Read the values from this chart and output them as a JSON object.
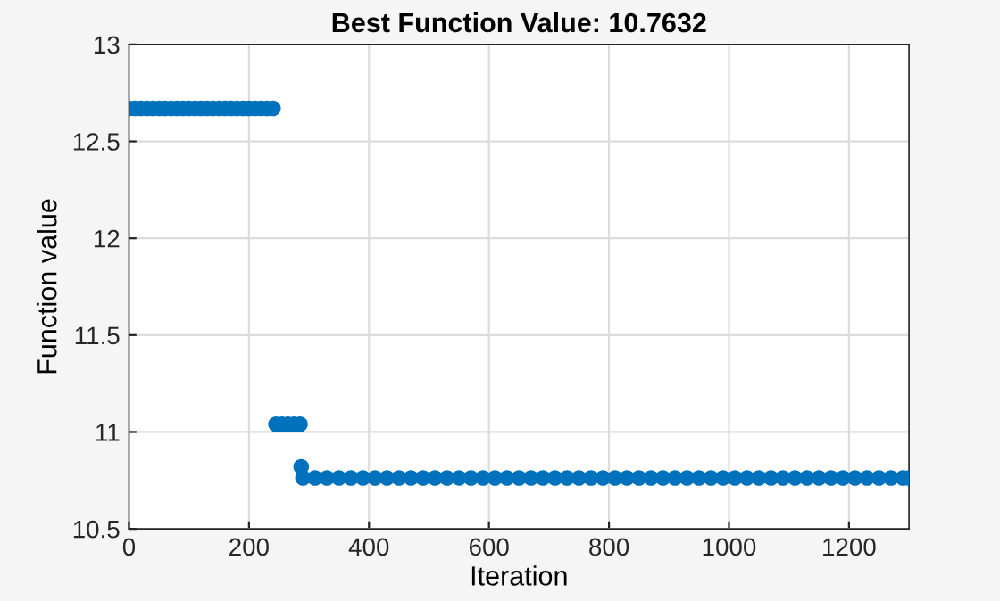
{
  "chart_data": {
    "type": "scatter",
    "title": "Best Function Value: 10.7632",
    "xlabel": "Iteration",
    "ylabel": "Function value",
    "xlim": [
      0,
      1300
    ],
    "xticks": [
      0,
      200,
      400,
      600,
      800,
      1000,
      1200
    ],
    "ylim": [
      10.5,
      13
    ],
    "yticks": [
      10.5,
      11,
      11.5,
      12,
      12.5,
      13
    ],
    "grid": true,
    "marker": "circle",
    "series": [
      {
        "color": "#0072bd",
        "x": [
          0,
          10,
          20,
          30,
          40,
          50,
          60,
          70,
          80,
          90,
          100,
          110,
          120,
          130,
          140,
          150,
          160,
          170,
          180,
          190,
          200,
          210,
          220,
          230,
          240,
          245,
          255,
          265,
          275,
          285,
          287,
          290,
          310,
          330,
          350,
          370,
          390,
          410,
          430,
          450,
          470,
          490,
          510,
          530,
          550,
          570,
          590,
          610,
          630,
          650,
          670,
          690,
          710,
          730,
          750,
          770,
          790,
          810,
          830,
          850,
          870,
          890,
          910,
          930,
          950,
          970,
          990,
          1010,
          1030,
          1050,
          1070,
          1090,
          1110,
          1130,
          1150,
          1170,
          1190,
          1210,
          1230,
          1250,
          1270,
          1290,
          1300
        ],
        "values": [
          12.67,
          12.67,
          12.67,
          12.67,
          12.67,
          12.67,
          12.67,
          12.67,
          12.67,
          12.67,
          12.67,
          12.67,
          12.67,
          12.67,
          12.67,
          12.67,
          12.67,
          12.67,
          12.67,
          12.67,
          12.67,
          12.67,
          12.67,
          12.67,
          12.67,
          11.04,
          11.04,
          11.04,
          11.04,
          11.04,
          10.82,
          10.7632,
          10.7632,
          10.7632,
          10.7632,
          10.7632,
          10.7632,
          10.7632,
          10.7632,
          10.7632,
          10.7632,
          10.7632,
          10.7632,
          10.7632,
          10.7632,
          10.7632,
          10.7632,
          10.7632,
          10.7632,
          10.7632,
          10.7632,
          10.7632,
          10.7632,
          10.7632,
          10.7632,
          10.7632,
          10.7632,
          10.7632,
          10.7632,
          10.7632,
          10.7632,
          10.7632,
          10.7632,
          10.7632,
          10.7632,
          10.7632,
          10.7632,
          10.7632,
          10.7632,
          10.7632,
          10.7632,
          10.7632,
          10.7632,
          10.7632,
          10.7632,
          10.7632,
          10.7632,
          10.7632,
          10.7632,
          10.7632,
          10.7632,
          10.7632,
          10.7632
        ]
      }
    ]
  }
}
